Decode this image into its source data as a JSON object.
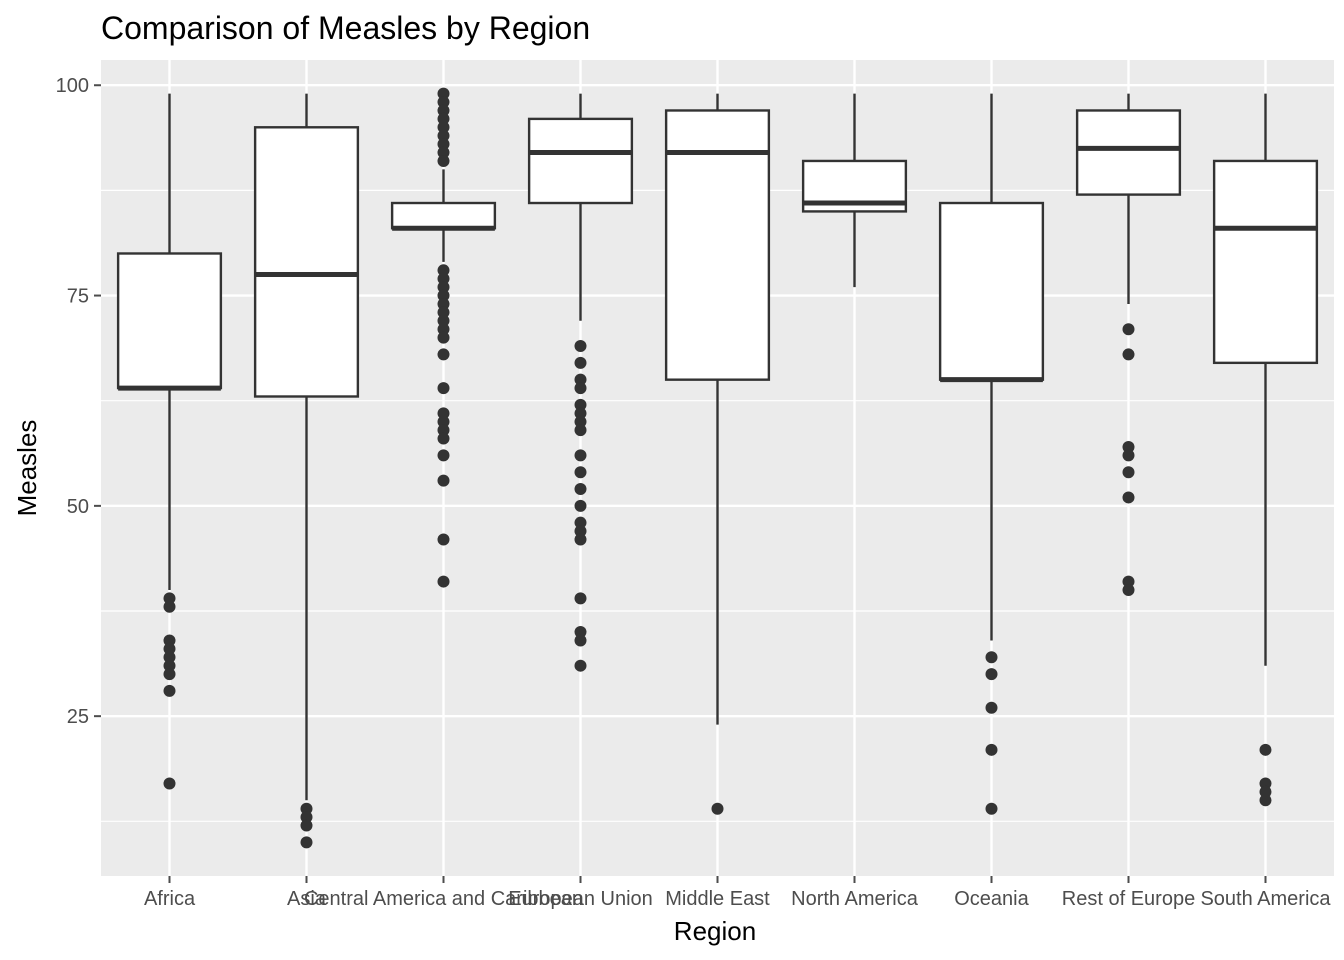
{
  "chart_data": {
    "type": "box",
    "title": "Comparison of Measles by Region",
    "xlabel": "Region",
    "ylabel": "Measles",
    "ylim": [
      6,
      103
    ],
    "yticks": [
      25,
      50,
      75,
      100
    ],
    "grid": true,
    "legend": "none",
    "categories": [
      "Africa",
      "Asia",
      "Central America and Caribbean",
      "European Union",
      "Middle East",
      "North America",
      "Oceania",
      "Rest of Europe",
      "South America"
    ],
    "series": [
      {
        "category": "Africa",
        "lower_whisker": 40,
        "q1": 64,
        "median": 64,
        "q3": 80,
        "upper_whisker": 99,
        "outliers": [
          39,
          38,
          34,
          33,
          32,
          31,
          30,
          28,
          17
        ]
      },
      {
        "category": "Asia",
        "lower_whisker": 15,
        "q1": 63,
        "median": 77.5,
        "q3": 95,
        "upper_whisker": 99,
        "outliers": [
          14,
          13,
          12,
          10
        ]
      },
      {
        "category": "Central America and Caribbean",
        "lower_whisker": 79,
        "q1": 83,
        "median": 83,
        "q3": 86,
        "upper_whisker": 90,
        "outliers": [
          99,
          98,
          97,
          96,
          95,
          94,
          93,
          92,
          91,
          78,
          77,
          76,
          75,
          74,
          73,
          72,
          71,
          70,
          68,
          64,
          61,
          60,
          59,
          58,
          56,
          53,
          46,
          41
        ]
      },
      {
        "category": "European Union",
        "lower_whisker": 72,
        "q1": 86,
        "median": 92,
        "q3": 96,
        "upper_whisker": 99,
        "outliers": [
          69,
          67,
          65,
          64,
          62,
          61,
          60,
          59,
          56,
          54,
          52,
          50,
          48,
          47,
          46,
          39,
          35,
          34,
          31
        ]
      },
      {
        "category": "Middle East",
        "lower_whisker": 24,
        "q1": 65,
        "median": 92,
        "q3": 97,
        "upper_whisker": 99,
        "outliers": [
          14
        ]
      },
      {
        "category": "North America",
        "lower_whisker": 76,
        "q1": 85,
        "median": 86,
        "q3": 91,
        "upper_whisker": 99,
        "outliers": []
      },
      {
        "category": "Oceania",
        "lower_whisker": 34,
        "q1": 65,
        "median": 65,
        "q3": 86,
        "upper_whisker": 99,
        "outliers": [
          32,
          30,
          26,
          21,
          14
        ]
      },
      {
        "category": "Rest of Europe",
        "lower_whisker": 74,
        "q1": 87,
        "median": 92.5,
        "q3": 97,
        "upper_whisker": 99,
        "outliers": [
          71,
          68,
          57,
          56,
          54,
          51,
          41,
          40
        ]
      },
      {
        "category": "South America",
        "lower_whisker": 31,
        "q1": 67,
        "median": 83,
        "q3": 91,
        "upper_whisker": 99,
        "outliers": [
          21,
          17,
          16,
          15
        ]
      }
    ],
    "colors": {
      "panel": "#ebebeb",
      "grid": "#ffffff",
      "box_fill": "#ffffff",
      "box_stroke": "#333333",
      "point": "#333333",
      "tick_text": "#4d4d4d",
      "title_text": "#000000"
    }
  }
}
